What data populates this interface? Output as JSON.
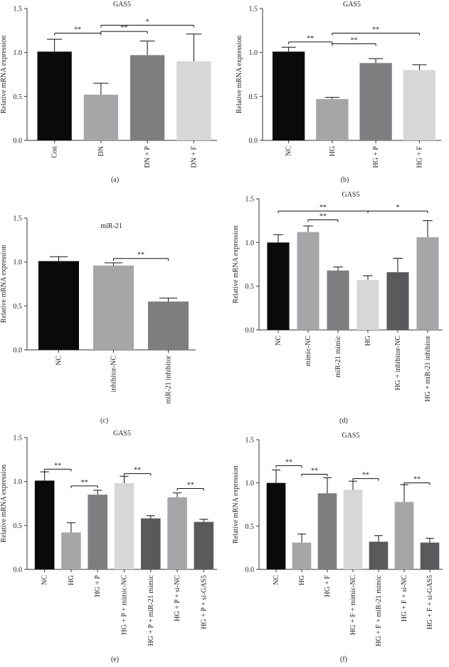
{
  "chart_data": [
    {
      "panel": "(a)",
      "type": "bar",
      "title": "GAS5",
      "ylabel": "Relative mRNA expression",
      "ylim": [
        0,
        1.5
      ],
      "yticks": [
        "0.0",
        "0.5",
        "1.0",
        "1.5"
      ],
      "categories": [
        "Con",
        "DN",
        "DN + P",
        "DN + F"
      ],
      "values": [
        1.01,
        0.52,
        0.97,
        0.9
      ],
      "errors": [
        0.14,
        0.13,
        0.16,
        0.31
      ],
      "colors": [
        "#0a0a0a",
        "#a6a6a8",
        "#7e7e80",
        "#d7d7d7"
      ],
      "sig": [
        {
          "from": 0,
          "to": 1,
          "label": "**",
          "y": 1.22
        },
        {
          "from": 1,
          "to": 2,
          "label": "**",
          "y": 1.24
        },
        {
          "from": 1,
          "to": 3,
          "label": "*",
          "y": 1.31
        }
      ]
    },
    {
      "panel": "(b)",
      "type": "bar",
      "title": "GAS5",
      "ylabel": "Relative mRNA expression",
      "ylim": [
        0,
        1.5
      ],
      "yticks": [
        "0.0",
        "0.5",
        "1.0",
        "1.5"
      ],
      "categories": [
        "NC",
        "HG",
        "HG + P",
        "HG + F"
      ],
      "values": [
        1.01,
        0.47,
        0.88,
        0.8
      ],
      "errors": [
        0.05,
        0.02,
        0.05,
        0.06
      ],
      "colors": [
        "#0a0a0a",
        "#a6a6a8",
        "#7e7e80",
        "#d7d7d7"
      ],
      "sig": [
        {
          "from": 0,
          "to": 1,
          "label": "**",
          "y": 1.12
        },
        {
          "from": 1,
          "to": 2,
          "label": "**",
          "y": 1.1
        },
        {
          "from": 1,
          "to": 3,
          "label": "**",
          "y": 1.22
        }
      ]
    },
    {
      "panel": "(c)",
      "type": "bar",
      "title": "miR-21",
      "ylabel": "Relative mRNA expression",
      "ylim": [
        0,
        1.5
      ],
      "yticks": [
        "0.0",
        "0.5",
        "1.0",
        "1.5"
      ],
      "categories": [
        "NC",
        "inhibitor-NC",
        "miR-21 inhibitor"
      ],
      "values": [
        1.01,
        0.96,
        0.55
      ],
      "errors": [
        0.05,
        0.03,
        0.04
      ],
      "colors": [
        "#0a0a0a",
        "#a6a6a8",
        "#7e7e80"
      ],
      "sig": [
        {
          "from": 1,
          "to": 2,
          "label": "**",
          "y": 1.04
        }
      ]
    },
    {
      "panel": "(d)",
      "type": "bar",
      "title": "GAS5",
      "ylabel": "Relative mRNA expression",
      "ylim": [
        0,
        1.5
      ],
      "yticks": [
        "0.0",
        "0.5",
        "1.0",
        "1.5"
      ],
      "categories": [
        "NC",
        "mimic-NC",
        "miR-21 mimic",
        "HG",
        "HG + inhibitor-NC",
        "HG + miR-21 inhibitor"
      ],
      "values": [
        1.0,
        1.12,
        0.68,
        0.57,
        0.66,
        1.06
      ],
      "errors": [
        0.09,
        0.07,
        0.04,
        0.05,
        0.16,
        0.19
      ],
      "colors": [
        "#0a0a0a",
        "#a6a6a8",
        "#7e7e80",
        "#d7d7d7",
        "#5a5a5c",
        "#a6a6a8"
      ],
      "sig": [
        {
          "from": 0,
          "to": 3,
          "label": "**",
          "y": 1.36
        },
        {
          "from": 1,
          "to": 2,
          "label": "**",
          "y": 1.26
        },
        {
          "from": 3,
          "to": 5,
          "label": "*",
          "y": 1.36
        }
      ]
    },
    {
      "panel": "(e)",
      "type": "bar",
      "title": "GAS5",
      "ylabel": "Relative mRNA expression",
      "ylim": [
        0,
        1.5
      ],
      "yticks": [
        "0.0",
        "0.5",
        "1.0",
        "1.5"
      ],
      "categories": [
        "NC",
        "HG",
        "HG + P",
        "HG + P + mimic-NC",
        "HG + P + miR-21 mimic",
        "HG + P + si-NC",
        "HG + P + si-GAS5"
      ],
      "values": [
        1.01,
        0.42,
        0.85,
        0.98,
        0.58,
        0.82,
        0.54
      ],
      "errors": [
        0.1,
        0.11,
        0.05,
        0.08,
        0.03,
        0.05,
        0.03
      ],
      "colors": [
        "#0a0a0a",
        "#a6a6a8",
        "#7e7e80",
        "#d7d7d7",
        "#5a5a5c",
        "#a6a6a8",
        "#5a5a5c"
      ],
      "sig": [
        {
          "from": 0,
          "to": 1,
          "label": "**",
          "y": 1.14
        },
        {
          "from": 1,
          "to": 2,
          "label": "**",
          "y": 0.95
        },
        {
          "from": 3,
          "to": 4,
          "label": "**",
          "y": 1.09
        },
        {
          "from": 5,
          "to": 6,
          "label": "**",
          "y": 0.92
        }
      ]
    },
    {
      "panel": "(f)",
      "type": "bar",
      "title": "GAS5",
      "ylabel": "Relative mRNA expression",
      "ylim": [
        0,
        1.5
      ],
      "yticks": [
        "0.0",
        "0.5",
        "1.0",
        "1.5"
      ],
      "categories": [
        "NC",
        "HG",
        "HG + F",
        "HG + F + mimic-NC",
        "HG + F + miR-21 mimic",
        "HG + F + si-NC",
        "HG + F + si-GAS5"
      ],
      "values": [
        1.0,
        0.31,
        0.88,
        0.92,
        0.32,
        0.78,
        0.31
      ],
      "errors": [
        0.15,
        0.1,
        0.18,
        0.1,
        0.07,
        0.2,
        0.05
      ],
      "colors": [
        "#0a0a0a",
        "#a6a6a8",
        "#7e7e80",
        "#d7d7d7",
        "#5a5a5c",
        "#a6a6a8",
        "#5a5a5c"
      ],
      "sig": [
        {
          "from": 0,
          "to": 1,
          "label": "**",
          "y": 1.2
        },
        {
          "from": 1,
          "to": 2,
          "label": "**",
          "y": 1.1
        },
        {
          "from": 3,
          "to": 4,
          "label": "**",
          "y": 1.05
        },
        {
          "from": 5,
          "to": 6,
          "label": "**",
          "y": 1.0
        }
      ]
    }
  ]
}
